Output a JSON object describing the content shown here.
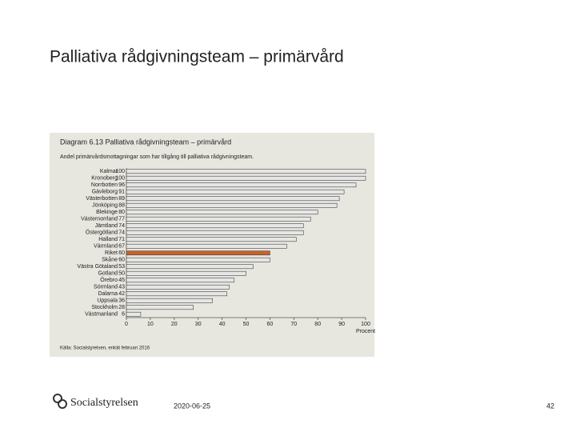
{
  "slide": {
    "title": "Palliativa rådgivningsteam – primärvård",
    "logo": "Socialstyrelsen",
    "date": "2020-06-25",
    "page": "42"
  },
  "chart_data": {
    "type": "bar",
    "orientation": "horizontal",
    "title": "Diagram 6.13 Palliativa rådgivningsteam – primärvård",
    "subtitle": "Andel primärvårdsmottagningar som har tillgång till palliativa rådgivningsteam.",
    "categories": [
      "Kalmar",
      "Kronoberg",
      "Norrbotten",
      "Gävleborg",
      "Västerbotten",
      "Jönköping",
      "Blekinge",
      "Västernorrland",
      "Jämtland",
      "Östergötland",
      "Halland",
      "Värmland",
      "Riket",
      "Skåne",
      "Västra Götaland",
      "Gotland",
      "Örebro",
      "Sörmland",
      "Dalarna",
      "Uppsala",
      "Stockholm",
      "Västmanland"
    ],
    "values": [
      100,
      100,
      96,
      91,
      89,
      88,
      80,
      77,
      74,
      74,
      71,
      67,
      60,
      60,
      53,
      50,
      45,
      43,
      42,
      36,
      28,
      6
    ],
    "colors": [
      "#e6e6e6",
      "#e6e6e6",
      "#e6e6e6",
      "#e6e6e6",
      "#e6e6e6",
      "#e6e6e6",
      "#e6e6e6",
      "#e6e6e6",
      "#e6e6e6",
      "#e6e6e6",
      "#e6e6e6",
      "#e6e6e6",
      "#c8622c",
      "#e6e6e6",
      "#e6e6e6",
      "#e6e6e6",
      "#e6e6e6",
      "#e6e6e6",
      "#e6e6e6",
      "#e6e6e6",
      "#e6e6e6",
      "#e6e6e6"
    ],
    "xlabel": "Procent",
    "xlim": [
      0,
      100
    ],
    "xticks": [
      0,
      10,
      20,
      30,
      40,
      50,
      60,
      70,
      80,
      90,
      100
    ],
    "source": "Källa: Socialstyrelsen, enkät februari 2016"
  }
}
